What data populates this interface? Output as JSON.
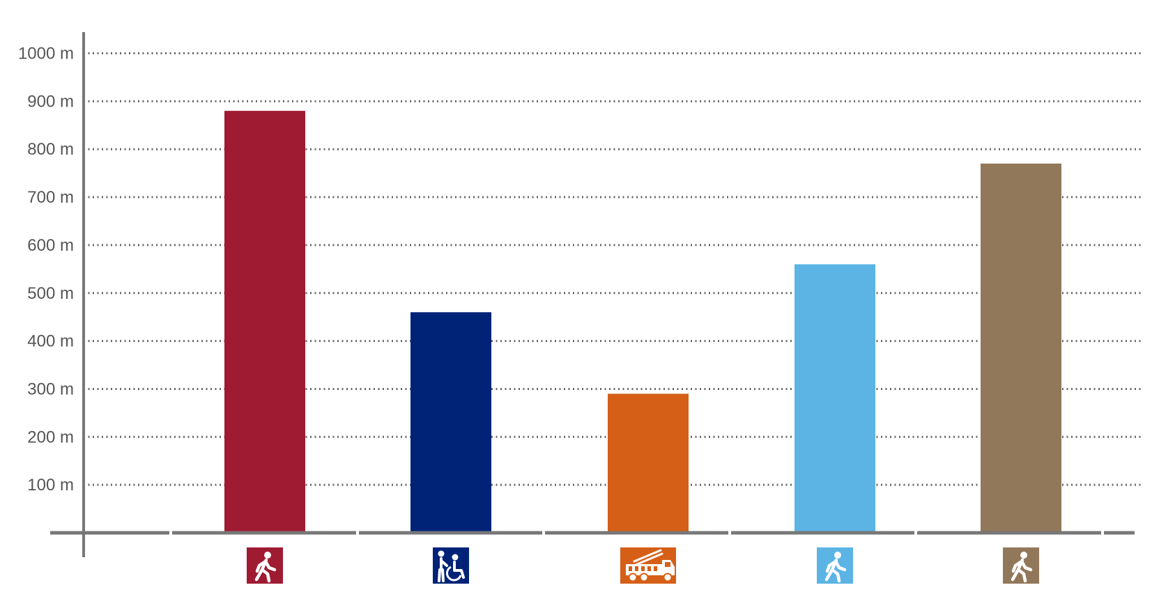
{
  "chart_data": {
    "type": "bar",
    "categories": [
      "walking-person",
      "wheelchair-assisted",
      "fire-truck",
      "walking-person",
      "walking-person"
    ],
    "values": [
      880,
      460,
      290,
      560,
      770
    ],
    "colors": [
      "#9E1B32",
      "#002378",
      "#D65F17",
      "#5BB4E4",
      "#92785A"
    ],
    "category_icons": [
      "pedestrian-icon",
      "wheelchair-icon",
      "fire-truck-icon",
      "pedestrian-icon",
      "pedestrian-icon"
    ],
    "ylim": [
      0,
      1000
    ],
    "yticks": [
      100,
      200,
      300,
      400,
      500,
      600,
      700,
      800,
      900,
      1000
    ],
    "ytick_labels": [
      "100 m",
      "200 m",
      "300 m",
      "400 m",
      "500 m",
      "600 m",
      "700 m",
      "800 m",
      "900 m",
      "1000 m"
    ],
    "grid": true,
    "grid_style": "dotted",
    "axis_color": "#777777",
    "grid_color": "#666666"
  }
}
